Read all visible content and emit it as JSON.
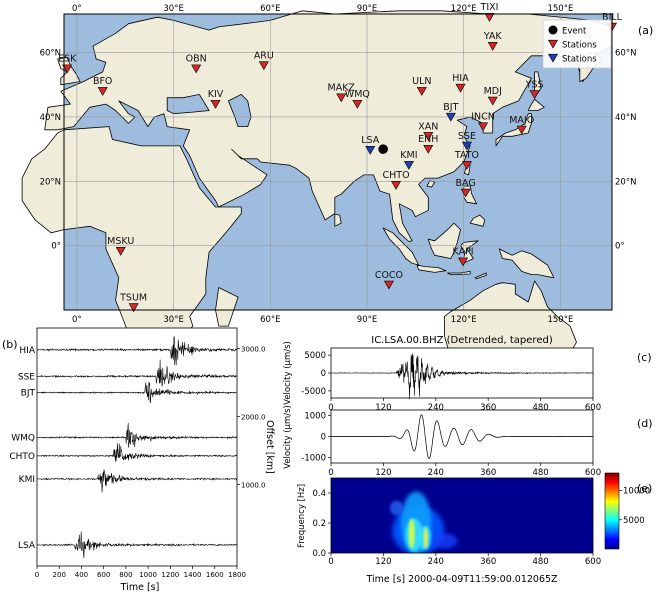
{
  "panel_labels": [
    "(a)",
    "(b)",
    "(c)",
    "(d)",
    "(e)"
  ],
  "colors": {
    "ocean": "#9dbcde",
    "land": "#efecd9",
    "coast": "#000000",
    "station_red": "#d62728",
    "station_blue": "#1f3fb4",
    "event": "#000000",
    "grid": "#9a9a9a"
  },
  "chart_data": [
    {
      "id": "map",
      "type": "scatter",
      "panel": "(a)",
      "xlim": [
        -4,
        166
      ],
      "ylim": [
        -20,
        72
      ],
      "x_ticks": [
        0,
        30,
        60,
        90,
        120,
        150
      ],
      "x_tick_labels": [
        "0°",
        "30°E",
        "60°E",
        "90°E",
        "120°E",
        "150°E"
      ],
      "y_ticks": [
        0,
        20,
        40,
        60
      ],
      "y_tick_labels": [
        "0°",
        "20°N",
        "40°N",
        "60°N"
      ],
      "grid": true,
      "legend": {
        "placement": "top-right",
        "entries": [
          {
            "label": "Event",
            "marker": "circle",
            "color": "#000000"
          },
          {
            "label": "Stations",
            "marker": "triangle-down",
            "color": "#d62728"
          },
          {
            "label": "Stations",
            "marker": "triangle-down",
            "color": "#1f3fb4"
          }
        ]
      },
      "event": {
        "lon": 95,
        "lat": 30
      },
      "stations": [
        {
          "code": "ESK",
          "lon": -3,
          "lat": 55,
          "group": "red"
        },
        {
          "code": "BFO",
          "lon": 8,
          "lat": 48,
          "group": "red"
        },
        {
          "code": "OBN",
          "lon": 37,
          "lat": 55,
          "group": "red"
        },
        {
          "code": "KIV",
          "lon": 43,
          "lat": 44,
          "group": "red"
        },
        {
          "code": "ARU",
          "lon": 58,
          "lat": 56,
          "group": "red"
        },
        {
          "code": "MAKZ",
          "lon": 82,
          "lat": 46,
          "group": "red"
        },
        {
          "code": "WMQ",
          "lon": 87,
          "lat": 44,
          "group": "red"
        },
        {
          "code": "ULN",
          "lon": 107,
          "lat": 48,
          "group": "red"
        },
        {
          "code": "TIXI",
          "lon": 128,
          "lat": 71,
          "group": "red"
        },
        {
          "code": "YAK",
          "lon": 129,
          "lat": 62,
          "group": "red"
        },
        {
          "code": "BILL",
          "lon": 166,
          "lat": 68,
          "group": "red"
        },
        {
          "code": "HIA",
          "lon": 119,
          "lat": 49,
          "group": "red"
        },
        {
          "code": "MDJ",
          "lon": 129,
          "lat": 45,
          "group": "red"
        },
        {
          "code": "YSS",
          "lon": 142,
          "lat": 47,
          "group": "red"
        },
        {
          "code": "BJT",
          "lon": 116,
          "lat": 40,
          "group": "blue"
        },
        {
          "code": "INCN",
          "lon": 126,
          "lat": 37,
          "group": "red"
        },
        {
          "code": "MAJO",
          "lon": 138,
          "lat": 36,
          "group": "red"
        },
        {
          "code": "XAN",
          "lon": 109,
          "lat": 34,
          "group": "red"
        },
        {
          "code": "ENH",
          "lon": 109,
          "lat": 30,
          "group": "red"
        },
        {
          "code": "SSE",
          "lon": 121,
          "lat": 31,
          "group": "blue"
        },
        {
          "code": "LSA",
          "lon": 91,
          "lat": 29.7,
          "group": "blue"
        },
        {
          "code": "KMI",
          "lon": 103,
          "lat": 25,
          "group": "blue"
        },
        {
          "code": "TATO",
          "lon": 121,
          "lat": 25,
          "group": "red"
        },
        {
          "code": "CHTO",
          "lon": 99,
          "lat": 18.8,
          "group": "red"
        },
        {
          "code": "BAG",
          "lon": 120.6,
          "lat": 16.4,
          "group": "red"
        },
        {
          "code": "KAPI",
          "lon": 119.8,
          "lat": -5,
          "group": "red"
        },
        {
          "code": "MSKU",
          "lon": 13.6,
          "lat": -1.7,
          "group": "red"
        },
        {
          "code": "COCO",
          "lon": 96.8,
          "lat": -12.2,
          "group": "red"
        },
        {
          "code": "TSUM",
          "lon": 17.6,
          "lat": -19.2,
          "group": "red"
        }
      ]
    },
    {
      "id": "record-section",
      "type": "line",
      "panel": "(b)",
      "xlabel": "Time [s]",
      "ylabel": "Offset [km]",
      "xlim": [
        0,
        1800
      ],
      "x_ticks": [
        0,
        200,
        400,
        600,
        800,
        1000,
        1200,
        1400,
        1600,
        1800
      ],
      "ylim": [
        -200,
        3300
      ],
      "y_ticks": [
        1000,
        2000,
        3000
      ],
      "y_tick_labels": [
        "1000.0",
        "2000.0",
        "3000.0"
      ],
      "series": [
        {
          "name": "HIA",
          "offset": 2980,
          "arrival": 1230
        },
        {
          "name": "SSE",
          "offset": 2590,
          "arrival": 1100
        },
        {
          "name": "BJT",
          "offset": 2350,
          "arrival": 1000
        },
        {
          "name": "WMQ",
          "offset": 1690,
          "arrival": 830
        },
        {
          "name": "CHTO",
          "offset": 1420,
          "arrival": 720
        },
        {
          "name": "KMI",
          "offset": 1080,
          "arrival": 580
        },
        {
          "name": "LSA",
          "offset": 110,
          "arrival": 370
        }
      ]
    },
    {
      "id": "velocity",
      "type": "line",
      "panel": "(c)",
      "title": "IC.LSA.00.BHZ (Detrended, tapered)",
      "ylabel": "Velocity (µm/s)",
      "xlim": [
        0,
        600
      ],
      "x_ticks": [
        0,
        120,
        240,
        360,
        480,
        600
      ],
      "ylim": [
        -7000,
        7000
      ],
      "y_ticks": [
        -5000,
        0,
        5000
      ]
    },
    {
      "id": "filtered-velocity",
      "type": "line",
      "panel": "(d)",
      "ylabel": "Velocity (µm/s)",
      "xlim": [
        0,
        600
      ],
      "x_ticks": [
        0,
        120,
        240,
        360,
        480,
        600
      ],
      "ylim": [
        -1250,
        1250
      ],
      "y_ticks": [
        -1000,
        0,
        1000
      ]
    },
    {
      "id": "spectrogram",
      "type": "heatmap",
      "panel": "(e)",
      "xlabel": "Time [s] 2000-04-09T11:59:00.012065Z",
      "ylabel": "Frequency [Hz]",
      "xlim": [
        0,
        600
      ],
      "x_ticks": [
        0,
        120,
        240,
        360,
        480,
        600
      ],
      "ylim": [
        0,
        0.5
      ],
      "y_ticks": [
        0.0,
        0.2,
        0.4
      ],
      "y_tick_labels": [
        "0.0",
        "0.2",
        "0.4"
      ],
      "colorbar": {
        "range": [
          0,
          13000
        ],
        "ticks": [
          5000,
          10000
        ],
        "placement": "right"
      }
    }
  ]
}
